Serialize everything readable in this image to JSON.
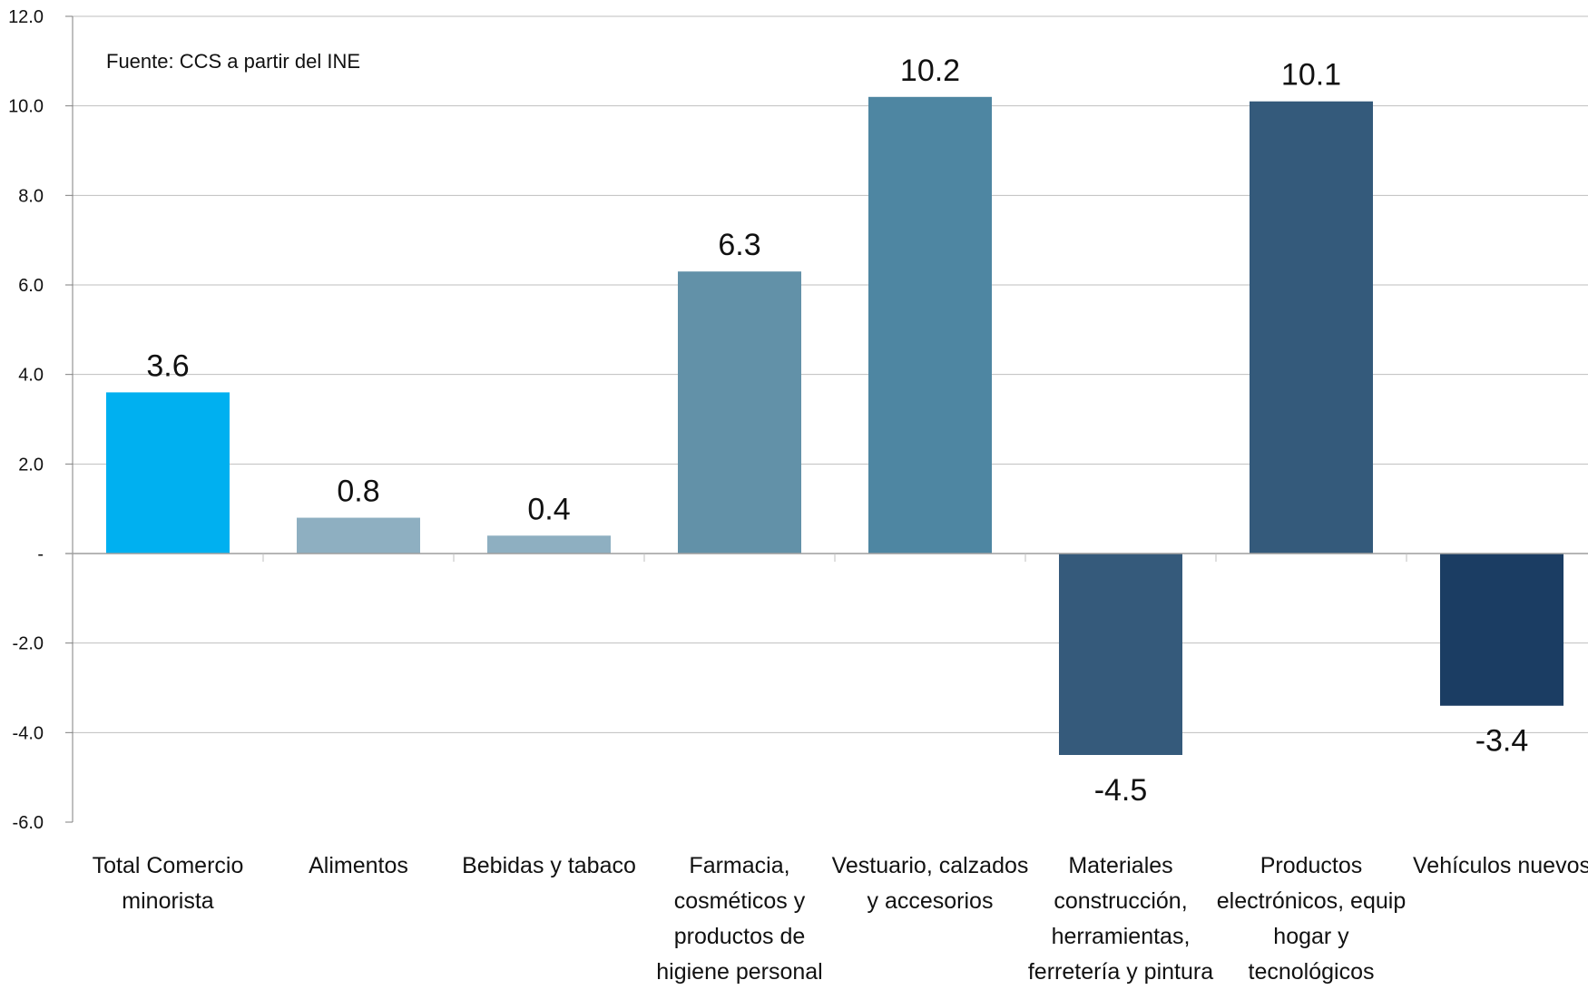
{
  "note": "Fuente: CCS a partir del INE",
  "chart_data": {
    "type": "bar",
    "categories": [
      [
        "Total Comercio",
        "minorista"
      ],
      [
        "Alimentos"
      ],
      [
        "Bebidas y tabaco"
      ],
      [
        "Farmacia,",
        "cosméticos y",
        "productos de",
        "higiene personal"
      ],
      [
        "Vestuario, calzados",
        "y accesorios"
      ],
      [
        "Materiales",
        "construcción,",
        "herramientas,",
        "ferretería y pintura"
      ],
      [
        "Productos",
        "electrónicos, equip",
        "hogar y",
        "tecnológicos"
      ],
      [
        "Vehículos nuevos"
      ]
    ],
    "values": [
      3.6,
      0.8,
      0.4,
      6.3,
      10.2,
      -4.5,
      10.1,
      -3.4
    ],
    "value_labels": [
      "3.6",
      "0.8",
      "0.4",
      "6.3",
      "10.2",
      "-4.5",
      "10.1",
      "-3.4"
    ],
    "colors": [
      "#00b0f0",
      "#8eafc1",
      "#8eafc1",
      "#6291a8",
      "#4e86a2",
      "#355a7b",
      "#345a7b",
      "#1b3d63"
    ],
    "ylim": [
      -6.0,
      12.0
    ],
    "yticks": [
      12.0,
      10.0,
      8.0,
      6.0,
      4.0,
      2.0,
      0,
      -2.0,
      -4.0,
      -6.0
    ],
    "ytick_labels": [
      "12.0",
      "10.0",
      "8.0",
      "6.0",
      "4.0",
      "2.0",
      "-",
      "-2.0",
      "-4.0",
      "-6.0"
    ],
    "grid": true,
    "xlabel": "",
    "ylabel": ""
  }
}
